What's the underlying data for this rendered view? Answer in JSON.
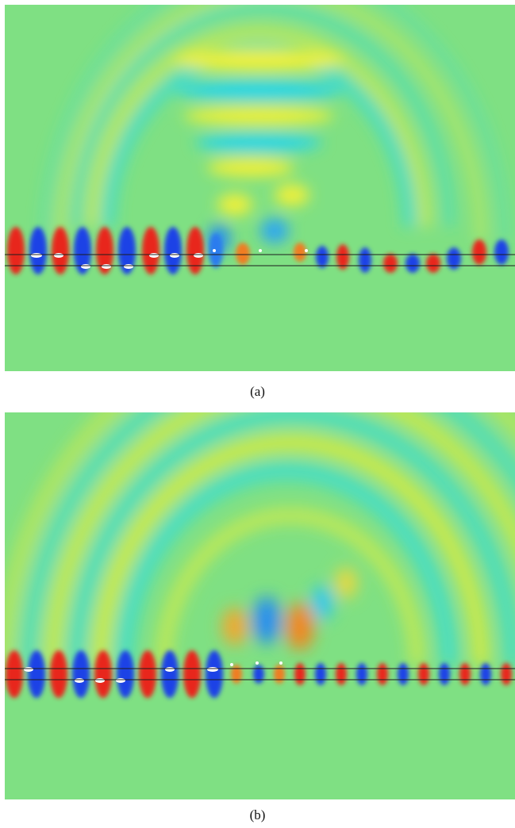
{
  "colors": {
    "background": "#7fe083",
    "positive_strong": "#e8261a",
    "positive_mid": "#f07d22",
    "positive_weak": "#e8ec3a",
    "negative_strong": "#1f43e6",
    "negative_mid": "#2a8fee",
    "negative_weak": "#33dbe0",
    "waveguide_line": "#1c1c1c",
    "hotspot": "#ffffff"
  },
  "panels": [
    {
      "id": "a",
      "caption": "(a)"
    },
    {
      "id": "b",
      "caption": "(b)"
    }
  ]
}
